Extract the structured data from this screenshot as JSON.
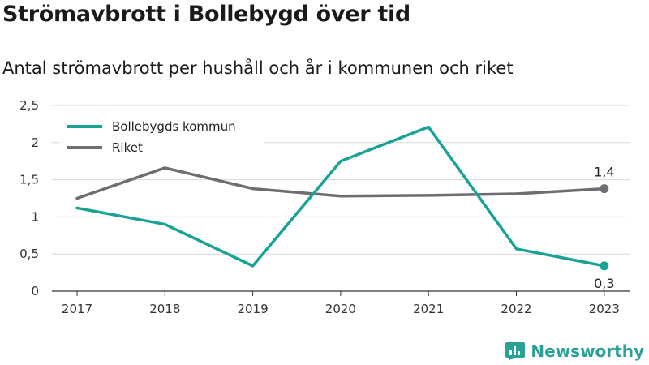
{
  "header": {
    "title": "Strömavbrott i Bollebygd över tid",
    "subtitle": "Antal strömavbrott per hushåll och år i kommunen och riket"
  },
  "brand": {
    "name": "Newsworthy",
    "logo_icon": "bar-chart-logo-icon",
    "color": "#2aa198"
  },
  "chart_data": {
    "type": "line",
    "x": [
      "2017",
      "2018",
      "2019",
      "2020",
      "2021",
      "2022",
      "2023"
    ],
    "ylim": [
      0,
      2.5
    ],
    "yticks": [
      0,
      0.5,
      1,
      1.5,
      2,
      2.5
    ],
    "ytick_labels": [
      "0",
      "0,5",
      "1",
      "1,5",
      "2",
      "2,5"
    ],
    "grid": true,
    "legend_placement": "top-left",
    "series": [
      {
        "name": "Bollebygds kommun",
        "color": "#1aa394",
        "values": [
          1.12,
          0.9,
          0.34,
          1.75,
          2.21,
          0.57,
          0.34
        ],
        "end_label": "0,3",
        "end_label_position": "below"
      },
      {
        "name": "Riket",
        "color": "#6d6d72",
        "values": [
          1.25,
          1.66,
          1.38,
          1.28,
          1.29,
          1.31,
          1.38
        ],
        "end_label": "1,4",
        "end_label_position": "above"
      }
    ]
  }
}
